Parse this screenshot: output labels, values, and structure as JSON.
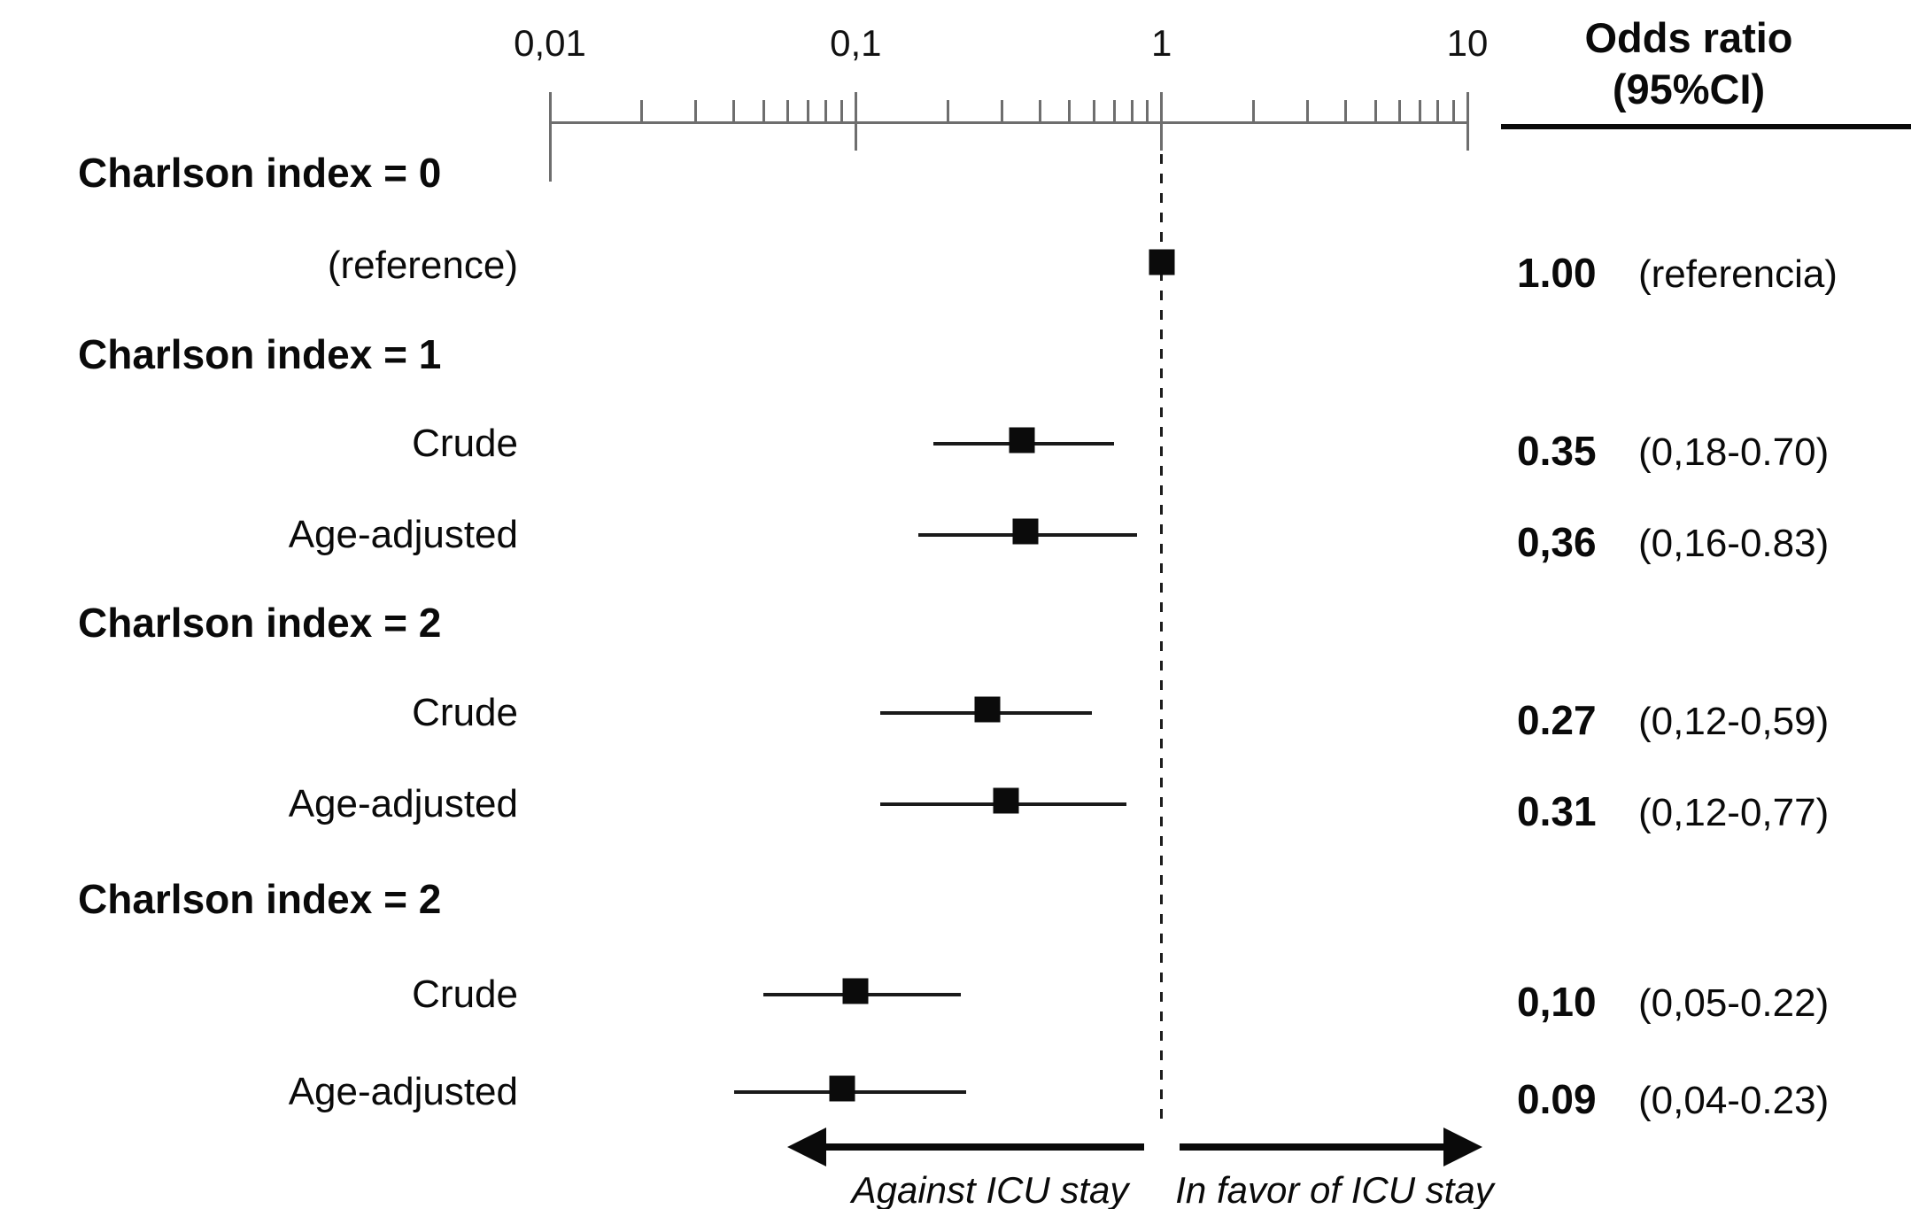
{
  "header": {
    "col_title_line1": "Odds ratio",
    "col_title_line2": "(95%CI)"
  },
  "footer": {
    "left_arrow_label": "Against ICU stay",
    "right_arrow_label": "In favor of ICU stay"
  },
  "colors": {
    "text": "#0a0a0a",
    "axis": "#6e6e6e",
    "marker": "#0b0b0b"
  },
  "chart_data": {
    "type": "scatter",
    "subtype": "forest-plot",
    "x_axis": {
      "scale": "log",
      "min": 0.01,
      "max": 10,
      "reference_line": 1,
      "ticks": [
        {
          "value": 0.01,
          "label": "0,01"
        },
        {
          "value": 0.1,
          "label": "0,1"
        },
        {
          "value": 1,
          "label": "1"
        },
        {
          "value": 10,
          "label": "10"
        }
      ]
    },
    "rows": [
      {
        "type": "group",
        "label": "Charlson index = 0"
      },
      {
        "type": "item",
        "label": "(reference)",
        "or": 1.0,
        "lo": null,
        "hi": null,
        "or_text": "1.00",
        "ci_text": "(referencia)"
      },
      {
        "type": "group",
        "label": "Charlson index = 1"
      },
      {
        "type": "item",
        "label": "Crude",
        "or": 0.35,
        "lo": 0.18,
        "hi": 0.7,
        "or_text": "0.35",
        "ci_text": "(0,18-0.70)"
      },
      {
        "type": "item",
        "label": "Age-adjusted",
        "or": 0.36,
        "lo": 0.16,
        "hi": 0.83,
        "or_text": "0,36",
        "ci_text": "(0,16-0.83)"
      },
      {
        "type": "group",
        "label": "Charlson index = 2"
      },
      {
        "type": "item",
        "label": "Crude",
        "or": 0.27,
        "lo": 0.12,
        "hi": 0.59,
        "or_text": "0.27",
        "ci_text": "(0,12-0,59)"
      },
      {
        "type": "item",
        "label": "Age-adjusted",
        "or": 0.31,
        "lo": 0.12,
        "hi": 0.77,
        "or_text": "0.31",
        "ci_text": "(0,12-0,77)"
      },
      {
        "type": "group",
        "label": "Charlson index = 2"
      },
      {
        "type": "item",
        "label": "Crude",
        "or": 0.1,
        "lo": 0.05,
        "hi": 0.22,
        "or_text": "0,10",
        "ci_text": "(0,05-0.22)"
      },
      {
        "type": "item",
        "label": "Age-adjusted",
        "or": 0.09,
        "lo": 0.04,
        "hi": 0.23,
        "or_text": "0.09",
        "ci_text": "(0,04-0.23)"
      }
    ]
  }
}
